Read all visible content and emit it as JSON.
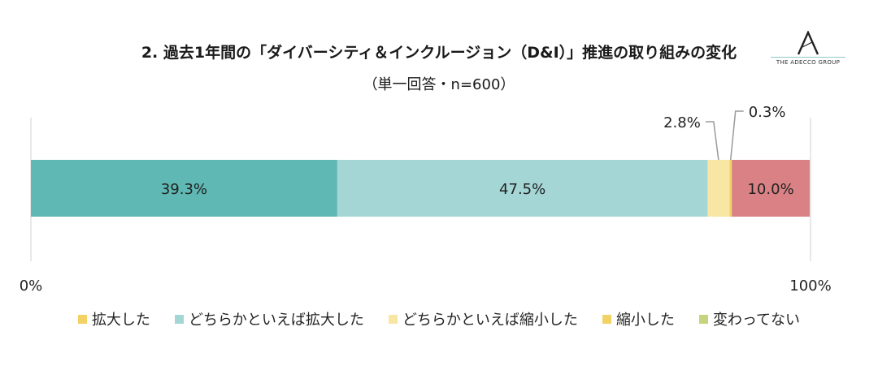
{
  "logo": {
    "text": "THE ADECCO GROUP"
  },
  "chart_data": {
    "type": "bar",
    "orientation": "horizontal-stacked",
    "title": "2. 過去1年間の「ダイバーシティ＆インクルージョン（D&I）」推進の取り組みの変化",
    "subtitle": "（単一回答・n=600）",
    "xlim": [
      0,
      100
    ],
    "tick_labels": [
      "0%",
      "100%"
    ],
    "legend_position": "bottom",
    "series": [
      {
        "name": "拡大した",
        "value": 39.3,
        "label": "39.3%",
        "color": "#5fb8b3",
        "legend_color": "#f2d264"
      },
      {
        "name": "どちらかといえば拡大した",
        "value": 47.5,
        "label": "47.5%",
        "color": "#a3d6d4",
        "legend_color": "#a3d6d4"
      },
      {
        "name": "どちらかといえば縮小した",
        "value": 2.8,
        "label": "2.8%",
        "color": "#f8e6a4",
        "legend_color": "#f8e6a4"
      },
      {
        "name": "縮小した",
        "value": 0.3,
        "label": "0.3%",
        "color": "#f2d264",
        "legend_color": "#f2d264"
      },
      {
        "name": "変わってない",
        "value": 10.0,
        "label": "10.0%",
        "color": "#d98184",
        "legend_color": "#c5d57e"
      }
    ]
  }
}
